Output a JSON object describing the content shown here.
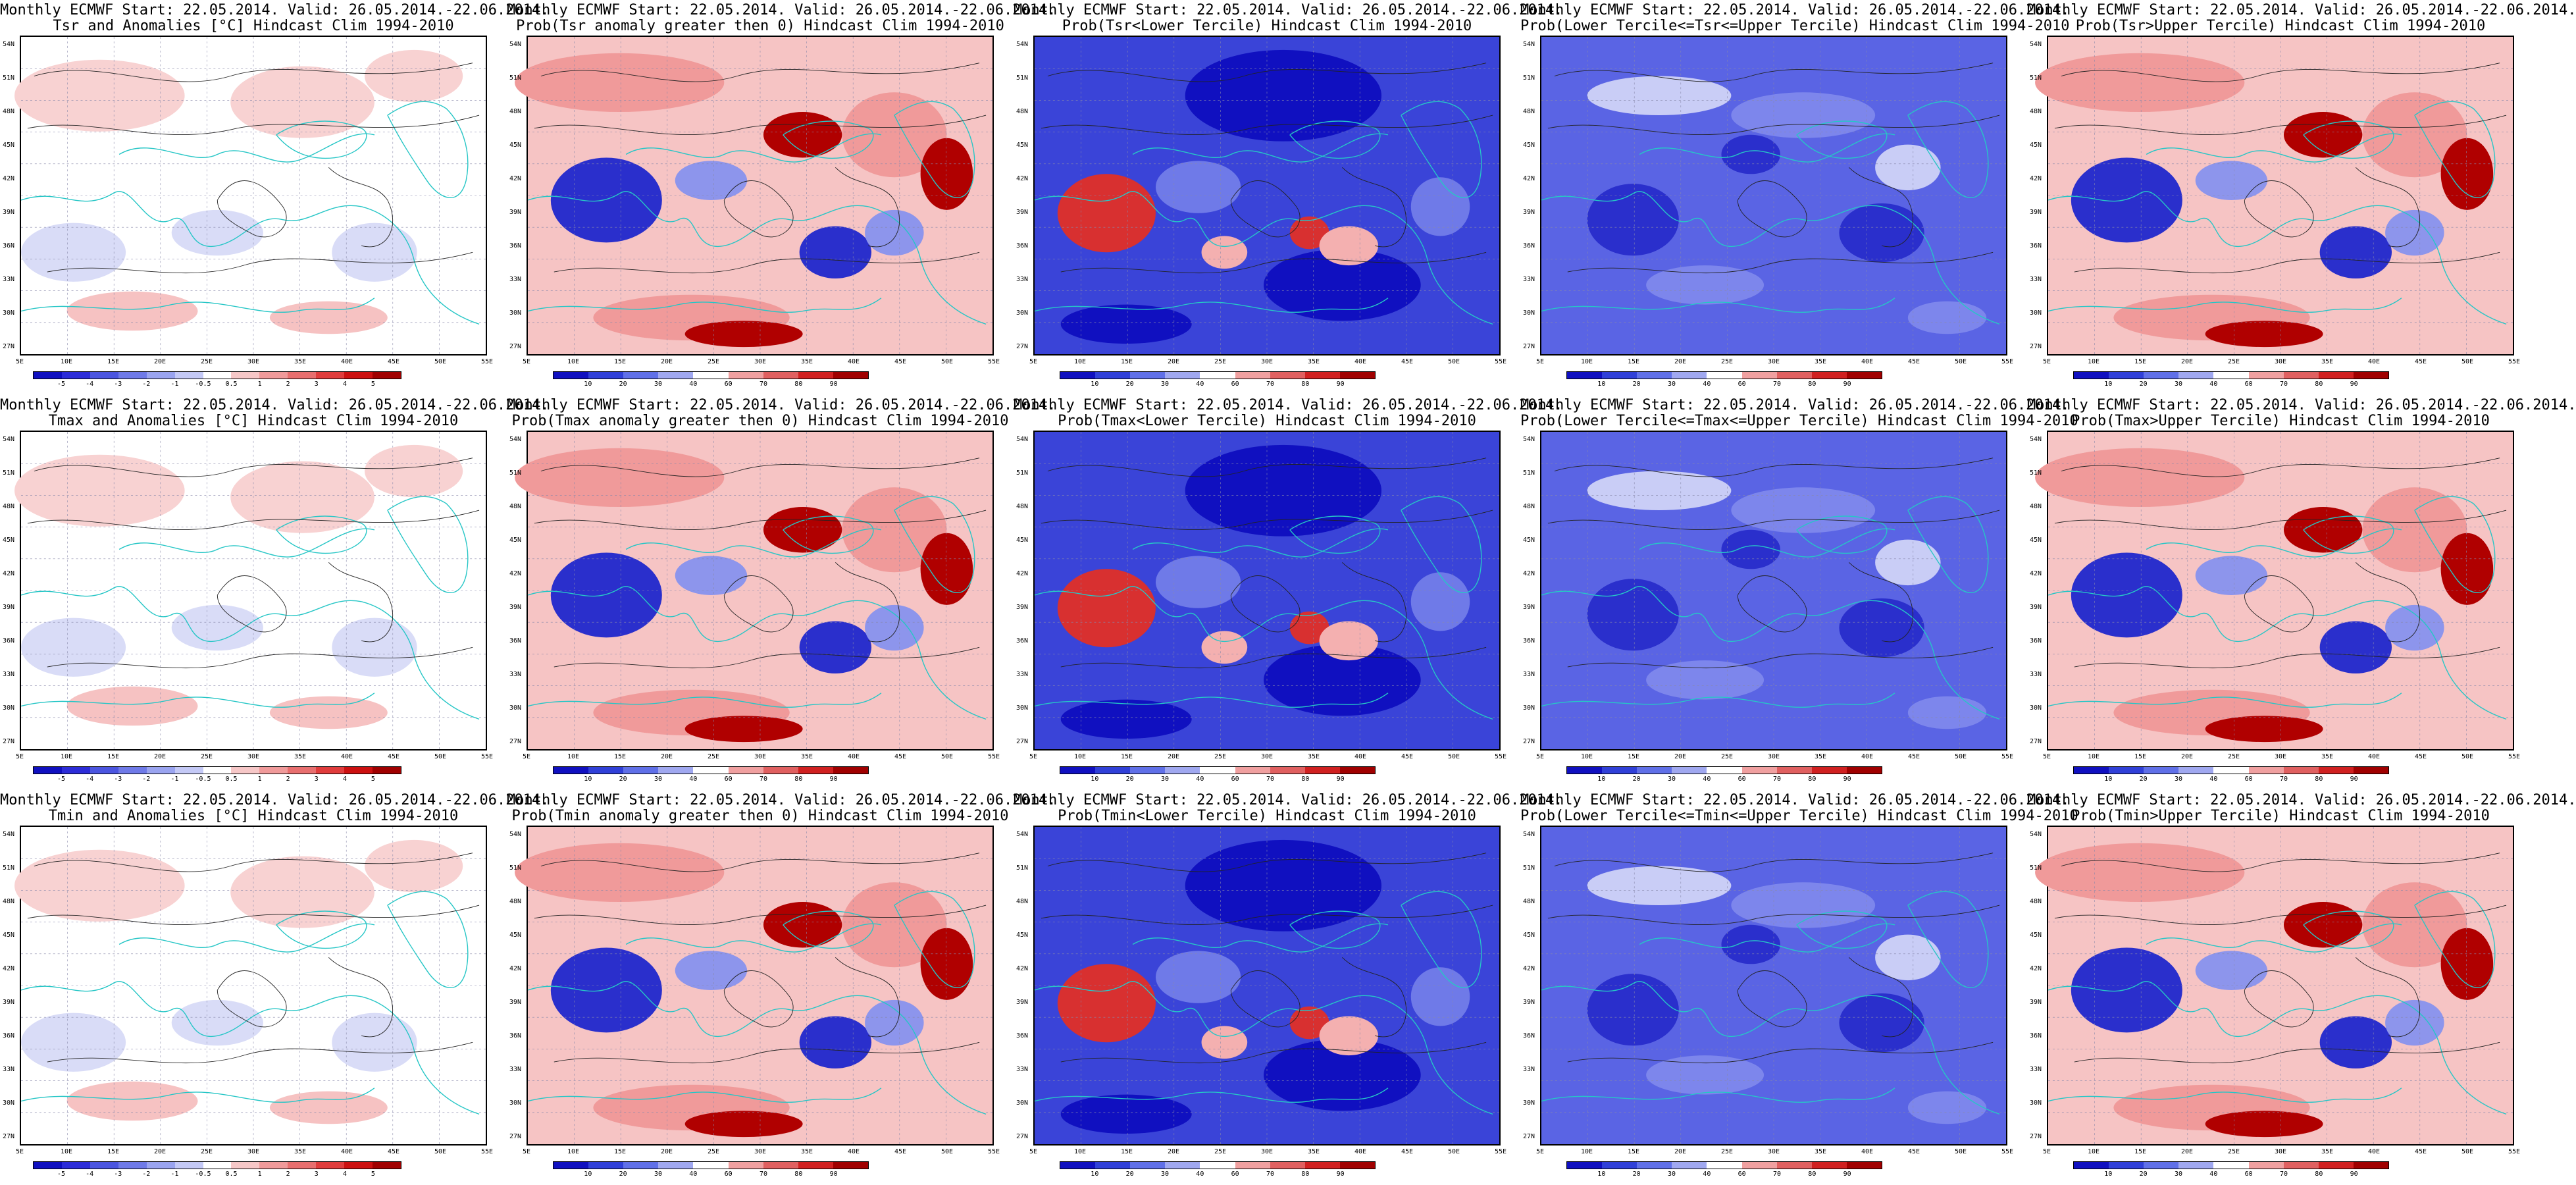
{
  "grid": {
    "latitudes": [
      "54N",
      "51N",
      "48N",
      "45N",
      "42N",
      "39N",
      "36N",
      "33N",
      "30N",
      "27N"
    ],
    "longitudes": [
      "5E",
      "10E",
      "15E",
      "20E",
      "25E",
      "30E",
      "35E",
      "40E",
      "45E",
      "50E",
      "55E"
    ]
  },
  "colorbars": {
    "anomaly": {
      "ticks": [
        "-5",
        "-4",
        "-3",
        "-2",
        "-1",
        "-0.5",
        "0.5",
        "1",
        "2",
        "3",
        "4",
        "5"
      ],
      "colors": [
        "#1010c0",
        "#2c2cd8",
        "#4b55e0",
        "#6f7ae8",
        "#9aa4f0",
        "#c4c9f6",
        "#ffffff",
        "#f6c7c7",
        "#f09a9a",
        "#e86f6f",
        "#e03c3c",
        "#cc1010",
        "#a00000"
      ]
    },
    "probability": {
      "ticks": [
        "10",
        "20",
        "30",
        "40",
        "60",
        "70",
        "80",
        "90"
      ],
      "colors": [
        "#1010c0",
        "#3040d8",
        "#6070e8",
        "#a0a8f0",
        "#ffffff",
        "#f0a0a0",
        "#e06060",
        "#d02020",
        "#a00000"
      ]
    }
  },
  "panels": [
    {
      "id": "p1",
      "title1": "Monthly ECMWF Start: 22.05.2014. Valid: 26.05.2014.-22.06.2014.",
      "title2": "Tsr and Anomalies [°C] Hindcast Clim 1994-2010",
      "bar": "anomaly",
      "theme": "anom"
    },
    {
      "id": "p2",
      "title1": "Monthly ECMWF Start: 22.05.2014. Valid: 26.05.2014.-22.06.2014.",
      "title2": "Prob(Tsr anomaly greater then 0) Hindcast Clim 1994-2010",
      "bar": "probability",
      "theme": "warm"
    },
    {
      "id": "p3",
      "title1": "Monthly ECMWF Start: 22.05.2014. Valid: 26.05.2014.-22.06.2014.",
      "title2": "Prob(Tsr<Lower Tercile) Hindcast Clim 1994-2010",
      "bar": "probability",
      "theme": "cold"
    },
    {
      "id": "p4",
      "title1": "Monthly ECMWF Start: 22.05.2014. Valid: 26.05.2014.-22.06.2014.",
      "title2": "Prob(Lower Tercile<=Tsr<=Upper Tercile) Hindcast Clim 1994-2010",
      "bar": "probability",
      "theme": "mid"
    },
    {
      "id": "p5",
      "title1": "Monthly ECMWF Start: 22.05.2014. Valid: 26.05.2014.-22.06.2014.",
      "title2": "Prob(Tsr>Upper Tercile) Hindcast Clim 1994-2010",
      "bar": "probability",
      "theme": "warm"
    },
    {
      "id": "p6",
      "title1": "Monthly ECMWF Start: 22.05.2014. Valid: 26.05.2014.-22.06.2014.",
      "title2": "Tmax and Anomalies [°C] Hindcast Clim 1994-2010",
      "bar": "anomaly",
      "theme": "anom"
    },
    {
      "id": "p7",
      "title1": "Monthly ECMWF Start: 22.05.2014. Valid: 26.05.2014.-22.06.2014.",
      "title2": "Prob(Tmax anomaly greater then 0) Hindcast Clim 1994-2010",
      "bar": "probability",
      "theme": "warm"
    },
    {
      "id": "p8",
      "title1": "Monthly ECMWF Start: 22.05.2014. Valid: 26.05.2014.-22.06.2014.",
      "title2": "Prob(Tmax<Lower Tercile) Hindcast Clim 1994-2010",
      "bar": "probability",
      "theme": "cold"
    },
    {
      "id": "p9",
      "title1": "Monthly ECMWF Start: 22.05.2014. Valid: 26.05.2014.-22.06.2014.",
      "title2": "Prob(Lower Tercile<=Tmax<=Upper Tercile) Hindcast Clim 1994-2010",
      "bar": "probability",
      "theme": "mid"
    },
    {
      "id": "p10",
      "title1": "Monthly ECMWF Start: 22.05.2014. Valid: 26.05.2014.-22.06.2014.",
      "title2": "Prob(Tmax>Upper Tercile) Hindcast Clim 1994-2010",
      "bar": "probability",
      "theme": "warm"
    },
    {
      "id": "p11",
      "title1": "Monthly ECMWF Start: 22.05.2014. Valid: 26.05.2014.-22.06.2014.",
      "title2": "Tmin and Anomalies [°C] Hindcast Clim 1994-2010",
      "bar": "anomaly",
      "theme": "anom"
    },
    {
      "id": "p12",
      "title1": "Monthly ECMWF Start: 22.05.2014. Valid: 26.05.2014.-22.06.2014.",
      "title2": "Prob(Tmin anomaly greater then 0) Hindcast Clim 1994-2010",
      "bar": "probability",
      "theme": "warm"
    },
    {
      "id": "p13",
      "title1": "Monthly ECMWF Start: 22.05.2014. Valid: 26.05.2014.-22.06.2014.",
      "title2": "Prob(Tmin<Lower Tercile) Hindcast Clim 1994-2010",
      "bar": "probability",
      "theme": "cold"
    },
    {
      "id": "p14",
      "title1": "Monthly ECMWF Start: 22.05.2014. Valid: 26.05.2014.-22.06.2014.",
      "title2": "Prob(Lower Tercile<=Tmin<=Upper Tercile) Hindcast Clim 1994-2010",
      "bar": "probability",
      "theme": "mid"
    },
    {
      "id": "p15",
      "title1": "Monthly ECMWF Start: 22.05.2014. Valid: 26.05.2014.-22.06.2014.",
      "title2": "Prob(Tmin>Upper Tercile) Hindcast Clim 1994-2010",
      "bar": "probability",
      "theme": "warm"
    }
  ]
}
